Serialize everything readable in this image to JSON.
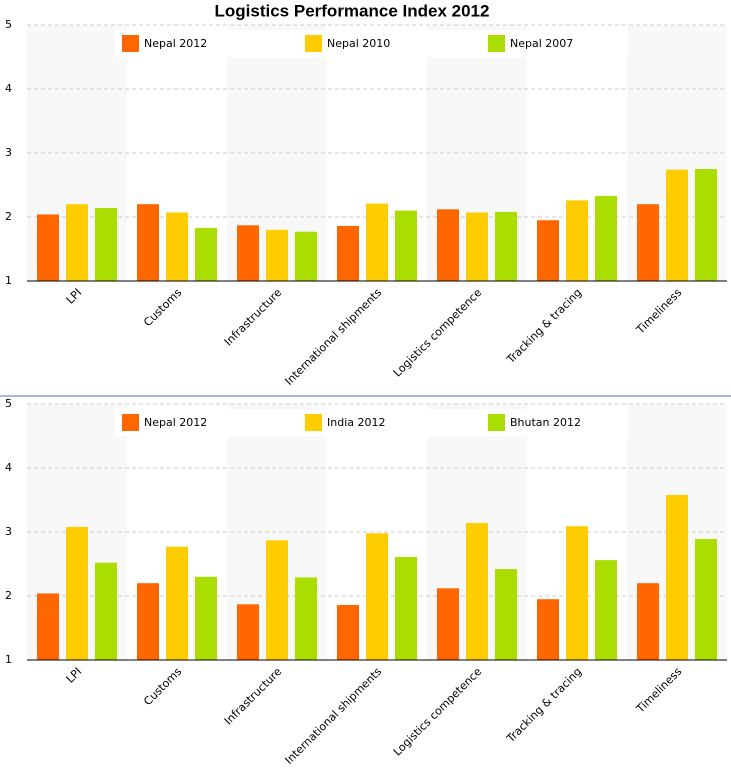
{
  "chart_data": [
    {
      "type": "bar",
      "title": "Logistics Performance Index 2012",
      "categories": [
        "LPI",
        "Customs",
        "Infrastructure",
        "International shipments",
        "Logistics competence",
        "Tracking & tracing",
        "Timeliness"
      ],
      "series": [
        {
          "name": "Nepal 2012",
          "color": "#ff6600",
          "values": [
            2.04,
            2.2,
            1.87,
            1.86,
            2.12,
            1.95,
            2.2
          ]
        },
        {
          "name": "Nepal 2010",
          "color": "#ffcc00",
          "values": [
            2.2,
            2.07,
            1.8,
            2.21,
            2.07,
            2.26,
            2.74
          ]
        },
        {
          "name": "Nepal 2007",
          "color": "#aadd00",
          "values": [
            2.14,
            1.83,
            1.77,
            2.1,
            2.08,
            2.33,
            2.75
          ]
        }
      ],
      "ylim": [
        1,
        5
      ],
      "yticks": [
        1,
        2,
        3,
        4,
        5
      ],
      "grid": true
    },
    {
      "type": "bar",
      "categories": [
        "LPI",
        "Customs",
        "Infrastructure",
        "International shipments",
        "Logistics competence",
        "Tracking & tracing",
        "Timeliness"
      ],
      "series": [
        {
          "name": "Nepal 2012",
          "color": "#ff6600",
          "values": [
            2.04,
            2.2,
            1.87,
            1.86,
            2.12,
            1.95,
            2.2
          ]
        },
        {
          "name": "India 2012",
          "color": "#ffcc00",
          "values": [
            3.08,
            2.77,
            2.87,
            2.98,
            3.14,
            3.09,
            3.58
          ]
        },
        {
          "name": "Bhutan 2012",
          "color": "#aadd00",
          "values": [
            2.52,
            2.3,
            2.29,
            2.61,
            2.42,
            2.56,
            2.89
          ]
        }
      ],
      "ylim": [
        1,
        5
      ],
      "yticks": [
        1,
        2,
        3,
        4,
        5
      ],
      "grid": true
    }
  ]
}
